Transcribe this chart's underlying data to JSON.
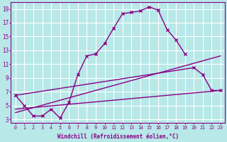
{
  "xlabel": "Windchill (Refroidissement éolien,°C)",
  "bg_color": "#b8e8e8",
  "grid_color": "#ffffff",
  "line_color": "#880088",
  "xlim": [
    -0.5,
    23.5
  ],
  "ylim": [
    2.5,
    20.0
  ],
  "xticks": [
    0,
    1,
    2,
    3,
    4,
    5,
    6,
    7,
    8,
    9,
    10,
    11,
    12,
    13,
    14,
    15,
    16,
    17,
    18,
    19,
    20,
    21,
    22,
    23
  ],
  "yticks": [
    3,
    5,
    7,
    9,
    11,
    13,
    15,
    17,
    19
  ],
  "series": [
    {
      "x": [
        0,
        1,
        2,
        3,
        4,
        5,
        6,
        7,
        8,
        9,
        10,
        11,
        12,
        13,
        14,
        15,
        16,
        17,
        18,
        19
      ],
      "y": [
        6.5,
        5.0,
        3.5,
        3.5,
        4.5,
        3.2,
        5.5,
        9.5,
        12.2,
        12.5,
        14.0,
        16.2,
        18.3,
        18.5,
        18.7,
        19.3,
        18.8,
        16.0,
        14.5,
        12.5
      ],
      "marker": "x",
      "linestyle": "-",
      "linewidth": 1.0
    },
    {
      "x": [
        0,
        20,
        21,
        22,
        23
      ],
      "y": [
        6.5,
        10.5,
        9.5,
        7.2,
        7.2
      ],
      "marker": "x",
      "linestyle": "-",
      "linewidth": 1.0
    },
    {
      "x": [
        0,
        23
      ],
      "y": [
        4.0,
        12.2
      ],
      "marker": null,
      "linestyle": "-",
      "linewidth": 1.0
    },
    {
      "x": [
        0,
        23
      ],
      "y": [
        4.5,
        7.2
      ],
      "marker": null,
      "linestyle": "-",
      "linewidth": 1.0
    }
  ]
}
